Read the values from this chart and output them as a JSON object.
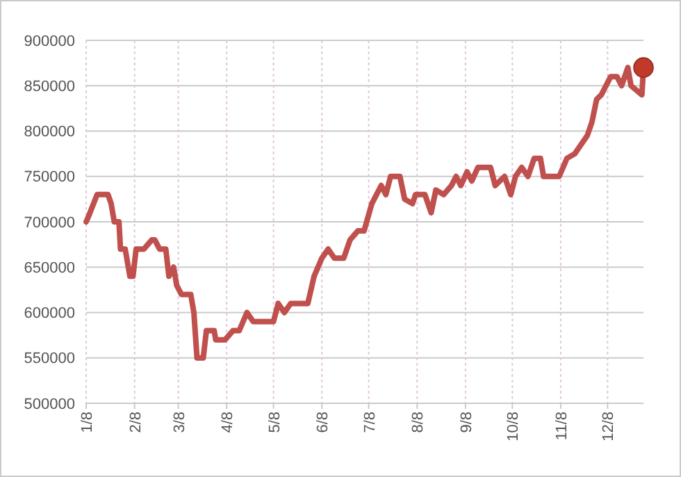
{
  "chart_data": {
    "type": "line",
    "xlim": [
      "--01-08",
      "--12-31"
    ],
    "xticks": [
      {
        "value": "--01-08",
        "label": "1/8"
      },
      {
        "value": "--02-08",
        "label": "2/8"
      },
      {
        "value": "--03-08",
        "label": "3/8"
      },
      {
        "value": "--04-08",
        "label": "4/8"
      },
      {
        "value": "--05-08",
        "label": "5/8"
      },
      {
        "value": "--06-08",
        "label": "6/8"
      },
      {
        "value": "--07-08",
        "label": "7/8"
      },
      {
        "value": "--08-08",
        "label": "8/8"
      },
      {
        "value": "--09-08",
        "label": "9/8"
      },
      {
        "value": "--10-08",
        "label": "10/8"
      },
      {
        "value": "--11-08",
        "label": "11/8"
      },
      {
        "value": "--12-08",
        "label": "12/8"
      }
    ],
    "ylim": [
      500000,
      900000
    ],
    "yticks": [
      500000,
      550000,
      600000,
      650000,
      700000,
      750000,
      800000,
      850000,
      900000
    ],
    "grid": true,
    "line_style": "solid",
    "series": [
      {
        "color": "#c0504d",
        "marker": "none",
        "x": [
          "--01-08",
          "--01-10",
          "--01-15",
          "--01-22",
          "--01-24",
          "--01-26",
          "--01-29",
          "--01-30",
          "--02-02",
          "--02-05",
          "--02-07",
          "--02-09",
          "--02-14",
          "--02-19",
          "--02-21",
          "--02-24",
          "--02-28",
          "--03-02",
          "--03-05",
          "--03-07",
          "--03-10",
          "--03-16",
          "--03-18",
          "--03-20",
          "--03-24",
          "--03-26",
          "--03-31",
          "--04-01",
          "--04-07",
          "--04-12",
          "--04-16",
          "--04-21",
          "--04-25",
          "--05-08",
          "--05-11",
          "--05-15",
          "--05-19",
          "--05-30",
          "--06-03",
          "--06-08",
          "--06-12",
          "--06-16",
          "--06-22",
          "--06-26",
          "--07-01",
          "--07-05",
          "--07-10",
          "--07-13",
          "--07-16",
          "--07-19",
          "--07-22",
          "--07-28",
          "--07-31",
          "--08-05",
          "--08-07",
          "--08-13",
          "--08-17",
          "--08-20",
          "--08-25",
          "--08-30",
          "--09-02",
          "--09-05",
          "--09-09",
          "--09-12",
          "--09-16",
          "--09-24",
          "--09-27",
          "--10-03",
          "--10-07",
          "--10-10",
          "--10-14",
          "--10-18",
          "--10-22",
          "--10-26",
          "--10-28",
          "--11-07",
          "--11-12",
          "--11-17",
          "--11-21",
          "--11-25",
          "--11-28",
          "--12-01",
          "--12-04",
          "--12-10",
          "--12-14",
          "--12-17",
          "--12-21",
          "--12-23",
          "--12-30",
          "--12-31"
        ],
        "values": [
          700000,
          708000,
          730000,
          730000,
          720000,
          700000,
          700000,
          670000,
          670000,
          640000,
          640000,
          670000,
          670000,
          680000,
          680000,
          670000,
          670000,
          640000,
          650000,
          630000,
          620000,
          620000,
          600000,
          550000,
          550000,
          580000,
          580000,
          570000,
          570000,
          580000,
          580000,
          600000,
          590000,
          590000,
          610000,
          600000,
          610000,
          610000,
          640000,
          660000,
          670000,
          660000,
          660000,
          680000,
          690000,
          690000,
          720000,
          730000,
          740000,
          730000,
          750000,
          750000,
          725000,
          720000,
          730000,
          730000,
          710000,
          735000,
          730000,
          740000,
          750000,
          740000,
          755000,
          745000,
          760000,
          760000,
          740000,
          750000,
          730000,
          750000,
          760000,
          750000,
          770000,
          770000,
          750000,
          750000,
          770000,
          775000,
          785000,
          795000,
          810000,
          835000,
          840000,
          860000,
          860000,
          850000,
          870000,
          850000,
          840000,
          870000
        ]
      },
      {
        "type": "scatter",
        "color": "#c0392b",
        "marker": "circle",
        "x": [
          "--12-31"
        ],
        "values": [
          870000
        ]
      }
    ]
  }
}
